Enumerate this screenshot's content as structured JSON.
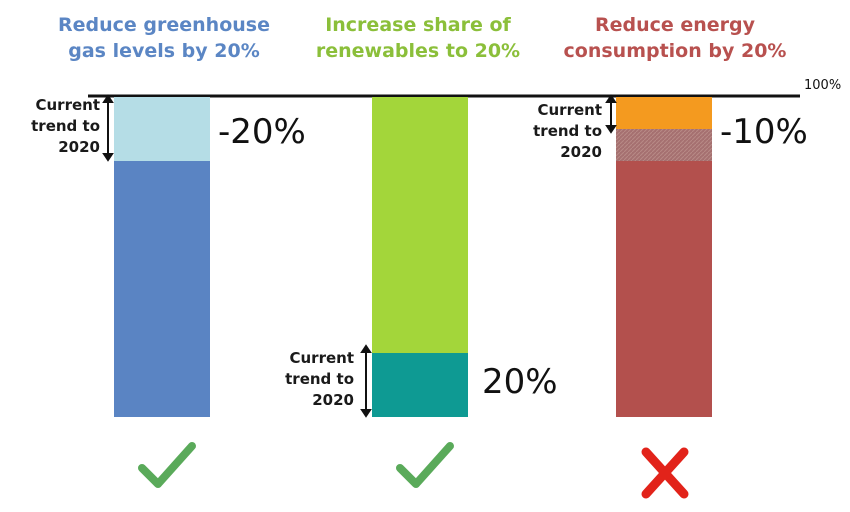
{
  "chart_data": {
    "type": "bar",
    "top_line_label": "100%",
    "targets": [
      {
        "title": "Reduce greenhouse gas levels by 20%",
        "title_lines": [
          "Reduce greenhouse",
          "gas levels by 20%"
        ],
        "title_color": "#5b86c4",
        "trend_label": [
          "Current",
          "trend to",
          "2020"
        ],
        "change_label": "-20%",
        "base_value": 80,
        "trend_value": 20,
        "base_color": "#5a84c3",
        "trend_color": "#b5dde6",
        "status": "achieved",
        "status_icon": "check-icon"
      },
      {
        "title": "Increase share of renewables to 20%",
        "title_lines": [
          "Increase share of",
          "renewables to 20%"
        ],
        "title_color": "#8bbf3a",
        "trend_label": [
          "Current",
          "trend to",
          "2020"
        ],
        "change_label": "20%",
        "base_value": 80,
        "trend_value": 20,
        "base_color": "#a3d63a",
        "trend_color": "#0e9a93",
        "status": "achieved",
        "status_icon": "check-icon"
      },
      {
        "title": "Reduce energy consumption by 20%",
        "title_lines": [
          "Reduce energy",
          "consumption by 20%"
        ],
        "title_color": "#b8514f",
        "trend_label": [
          "Current",
          "trend to",
          "2020"
        ],
        "change_label": "-10%",
        "base_value": 80,
        "gap_value": 10,
        "trend_value": 10,
        "base_color": "#b3504d",
        "gap_color": "#a87370",
        "trend_color": "#f49a1f",
        "status": "not achieved",
        "status_icon": "cross-icon"
      }
    ]
  },
  "colors": {
    "check": "#5aaa5a",
    "cross": "#e2231a",
    "axis_line": "#111111"
  }
}
